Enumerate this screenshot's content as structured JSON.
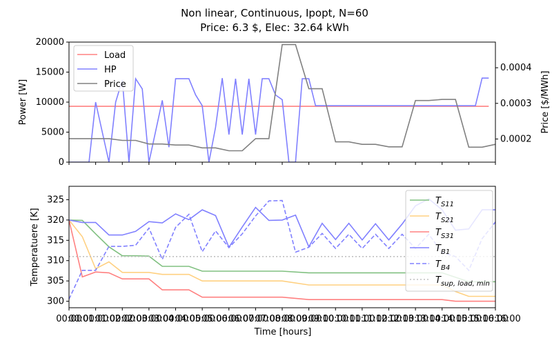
{
  "title": "Non linear, Continuous, Ipopt, N=60",
  "subtitle": "Price: 6.3 $, Elec: 32.64 kWh",
  "xlabel": "Time [hours]",
  "chart_data": [
    {
      "type": "line",
      "panel": "top",
      "ylabel": "Power [W]",
      "ylabel_right": "Price [$/MWh]",
      "ylim": [
        0,
        20000
      ],
      "ylim_right": [
        0.000135,
        0.000472
      ],
      "yticks": [
        "0",
        "5000",
        "10000",
        "15000",
        "20000"
      ],
      "yticks_right": [
        "0.0002",
        "0.0003",
        "0.0004"
      ],
      "legend": "top-left",
      "grid": false,
      "series": [
        {
          "name": "Load",
          "axis": "left",
          "color": "#ff8080",
          "x": [
            0,
            15.75
          ],
          "y": [
            9300,
            9300
          ]
        },
        {
          "name": "HP",
          "axis": "left",
          "color": "#8080ff",
          "x": [
            0,
            0.25,
            0.75,
            1,
            1.5,
            1.75,
            2,
            2.25,
            2.5,
            2.75,
            3,
            3.5,
            3.75,
            4,
            4.5,
            4.75,
            5,
            5.25,
            5.5,
            5.75,
            6,
            6.25,
            6.5,
            6.75,
            7,
            7.25,
            7.5,
            7.75,
            8,
            8.25,
            8.5,
            8.75,
            9,
            9.25,
            9.5,
            9.75,
            10,
            10.25,
            10.5,
            10.75,
            11,
            11.25,
            11.5,
            11.75,
            12,
            12.25,
            12.5,
            12.75,
            13,
            13.25,
            13.5,
            13.75,
            14,
            14.25,
            14.5,
            14.75,
            15,
            15.25,
            15.5,
            15.75
          ],
          "y": [
            0,
            0,
            0,
            10000,
            0,
            10000,
            13700,
            0,
            13900,
            12200,
            0,
            10300,
            2500,
            13900,
            13900,
            11200,
            9400,
            0,
            5800,
            14000,
            4600,
            13900,
            4600,
            13900,
            4600,
            13900,
            13900,
            11200,
            10400,
            0,
            0,
            13900,
            13900,
            9400,
            9400,
            9400,
            9400,
            9400,
            9400,
            9400,
            9400,
            9400,
            9400,
            9400,
            9400,
            9400,
            9400,
            9400,
            9400,
            9400,
            9400,
            9400,
            9400,
            9400,
            9400,
            9400,
            9400,
            9400,
            14000,
            14000
          ]
        },
        {
          "name": "Price",
          "axis": "right",
          "color": "#808080",
          "x": [
            0,
            1,
            1.5,
            2,
            2.5,
            3,
            3.5,
            4,
            4.5,
            5,
            5.5,
            6,
            6.5,
            7,
            7.5,
            8,
            8.5,
            9,
            9.5,
            10,
            10.5,
            11,
            11.5,
            12,
            12.5,
            13,
            13.5,
            14,
            14.5,
            15,
            15.5,
            16
          ],
          "y": [
            0.000201,
            0.000201,
            0.000201,
            0.000196,
            0.000196,
            0.000186,
            0.000186,
            0.000183,
            0.000183,
            0.000175,
            0.000175,
            0.000167,
            0.000167,
            0.000201,
            0.000201,
            0.000465,
            0.000465,
            0.000341,
            0.000341,
            0.000192,
            0.000192,
            0.000185,
            0.000185,
            0.000178,
            0.000178,
            0.000308,
            0.000308,
            0.000311,
            0.000311,
            0.000177,
            0.000177,
            0.000185
          ]
        }
      ]
    },
    {
      "type": "line",
      "panel": "bottom",
      "ylabel": "Temperatuere [K]",
      "ylim": [
        298.4,
        328.3
      ],
      "yticks": [
        "300",
        "305",
        "310",
        "315",
        "320",
        "325"
      ],
      "xlim": [
        0,
        16
      ],
      "xticks": [
        "00:00",
        "01:00",
        "02:00",
        "03:00",
        "04:00",
        "05:00",
        "06:00",
        "07:00",
        "08:00",
        "09:00",
        "10:00",
        "11:00",
        "12:00",
        "13:00",
        "14:00",
        "15:00",
        "16:00"
      ],
      "xticks_minor_repeat": [
        "00:00",
        "01:00",
        "02:00",
        "03:00",
        "04:00",
        "05:00",
        "06:00",
        "07:00",
        "08:00",
        "09:00",
        "10:00",
        "11:00",
        "12:00",
        "13:00",
        "14:00",
        "15:00",
        "16:00"
      ],
      "legend": "top-right",
      "grid": false,
      "series": [
        {
          "name": "T_S11",
          "label_main": "T",
          "label_sub": "S11",
          "color": "#80c080",
          "dash": "solid",
          "x": [
            0,
            0.5,
            1,
            1.5,
            2,
            2.5,
            3,
            3.5,
            4,
            4.5,
            5,
            6,
            7,
            8,
            9,
            10,
            11,
            12,
            13,
            14,
            15,
            16
          ],
          "y": [
            320,
            319.9,
            316.6,
            313.4,
            311.2,
            311.2,
            311.1,
            308.6,
            308.6,
            308.6,
            307.4,
            307.4,
            307.4,
            307.4,
            307,
            307,
            307,
            307,
            307,
            307,
            304.8,
            304.8
          ]
        },
        {
          "name": "T_S21",
          "label_main": "T",
          "label_sub": "S21",
          "color": "#ffd080",
          "dash": "solid",
          "x": [
            0,
            0.5,
            1,
            1.5,
            2,
            2.5,
            3,
            3.5,
            4,
            4.5,
            5,
            6,
            7,
            8,
            9,
            10,
            11,
            12,
            13,
            14,
            14.5,
            15,
            16
          ],
          "y": [
            320,
            315.9,
            308,
            309.7,
            307.1,
            307.1,
            307.1,
            306.6,
            306.6,
            306.6,
            305,
            305,
            305,
            305,
            304,
            304,
            304,
            304,
            304,
            304,
            302.4,
            301.2,
            301.2
          ]
        },
        {
          "name": "T_S31",
          "label_main": "T",
          "label_sub": "S31",
          "color": "#ff8080",
          "dash": "solid",
          "x": [
            0,
            0.5,
            1,
            1.5,
            2,
            2.5,
            3,
            3.5,
            4,
            4.5,
            5,
            6,
            7,
            8,
            9,
            10,
            11,
            12,
            13,
            14,
            14.5,
            15,
            16
          ],
          "y": [
            320,
            306,
            307.2,
            307,
            305.5,
            305.5,
            305.5,
            302.8,
            302.8,
            302.8,
            301,
            301,
            301,
            301,
            300.4,
            300.4,
            300.4,
            300.4,
            300.4,
            300.4,
            300,
            300,
            300
          ]
        },
        {
          "name": "T_B1",
          "label_main": "T",
          "label_sub": "B1",
          "color": "#8080ff",
          "dash": "solid",
          "x": [
            0,
            0.5,
            1,
            1.5,
            2,
            2.5,
            3,
            3.5,
            4,
            4.5,
            5,
            5.5,
            6,
            6.5,
            7,
            7.5,
            8,
            8.5,
            9,
            9.5,
            10,
            10.5,
            11,
            11.5,
            12,
            12.5,
            13,
            13.5,
            14,
            14.5,
            15,
            15.5,
            16
          ],
          "y": [
            320,
            319.4,
            319.4,
            316.3,
            316.3,
            317.2,
            319.6,
            319.3,
            321.5,
            320.1,
            322.5,
            321.1,
            313.3,
            318.3,
            323.1,
            319.9,
            320,
            321.2,
            313.4,
            319.2,
            315.2,
            319.2,
            315.1,
            319.1,
            315.1,
            319,
            323.5,
            325.2,
            322.5,
            317.5,
            317.8,
            322.5,
            322.5
          ]
        },
        {
          "name": "T_B4",
          "label_main": "T",
          "label_sub": "B4",
          "color": "#8080ff",
          "dash": "dashed",
          "x": [
            0,
            0.5,
            1,
            1.5,
            2,
            2.5,
            3,
            3.5,
            4,
            4.5,
            5,
            5.5,
            6,
            6.5,
            7,
            7.5,
            8,
            8.5,
            9,
            9.5,
            10,
            10.5,
            11,
            11.5,
            12,
            12.5,
            13,
            13.5,
            14,
            14.5,
            15,
            15.5,
            16
          ],
          "y": [
            300.5,
            307.6,
            307.6,
            313.5,
            313.5,
            313.8,
            318,
            310.3,
            318.2,
            321.4,
            312.2,
            317.3,
            313.2,
            316.6,
            321,
            324.7,
            324.8,
            312.1,
            313.3,
            316.7,
            313,
            316.5,
            313,
            316.5,
            313,
            316.5,
            313,
            316.5,
            312,
            311,
            307.6,
            315.4,
            319.5
          ]
        },
        {
          "name": "T_sup,load,min",
          "label_main": "T",
          "label_sub": "sup, load, min",
          "color": "#c0c0c0",
          "dash": "dotted",
          "x": [
            0,
            16
          ],
          "y": [
            311,
            311
          ]
        }
      ]
    }
  ]
}
